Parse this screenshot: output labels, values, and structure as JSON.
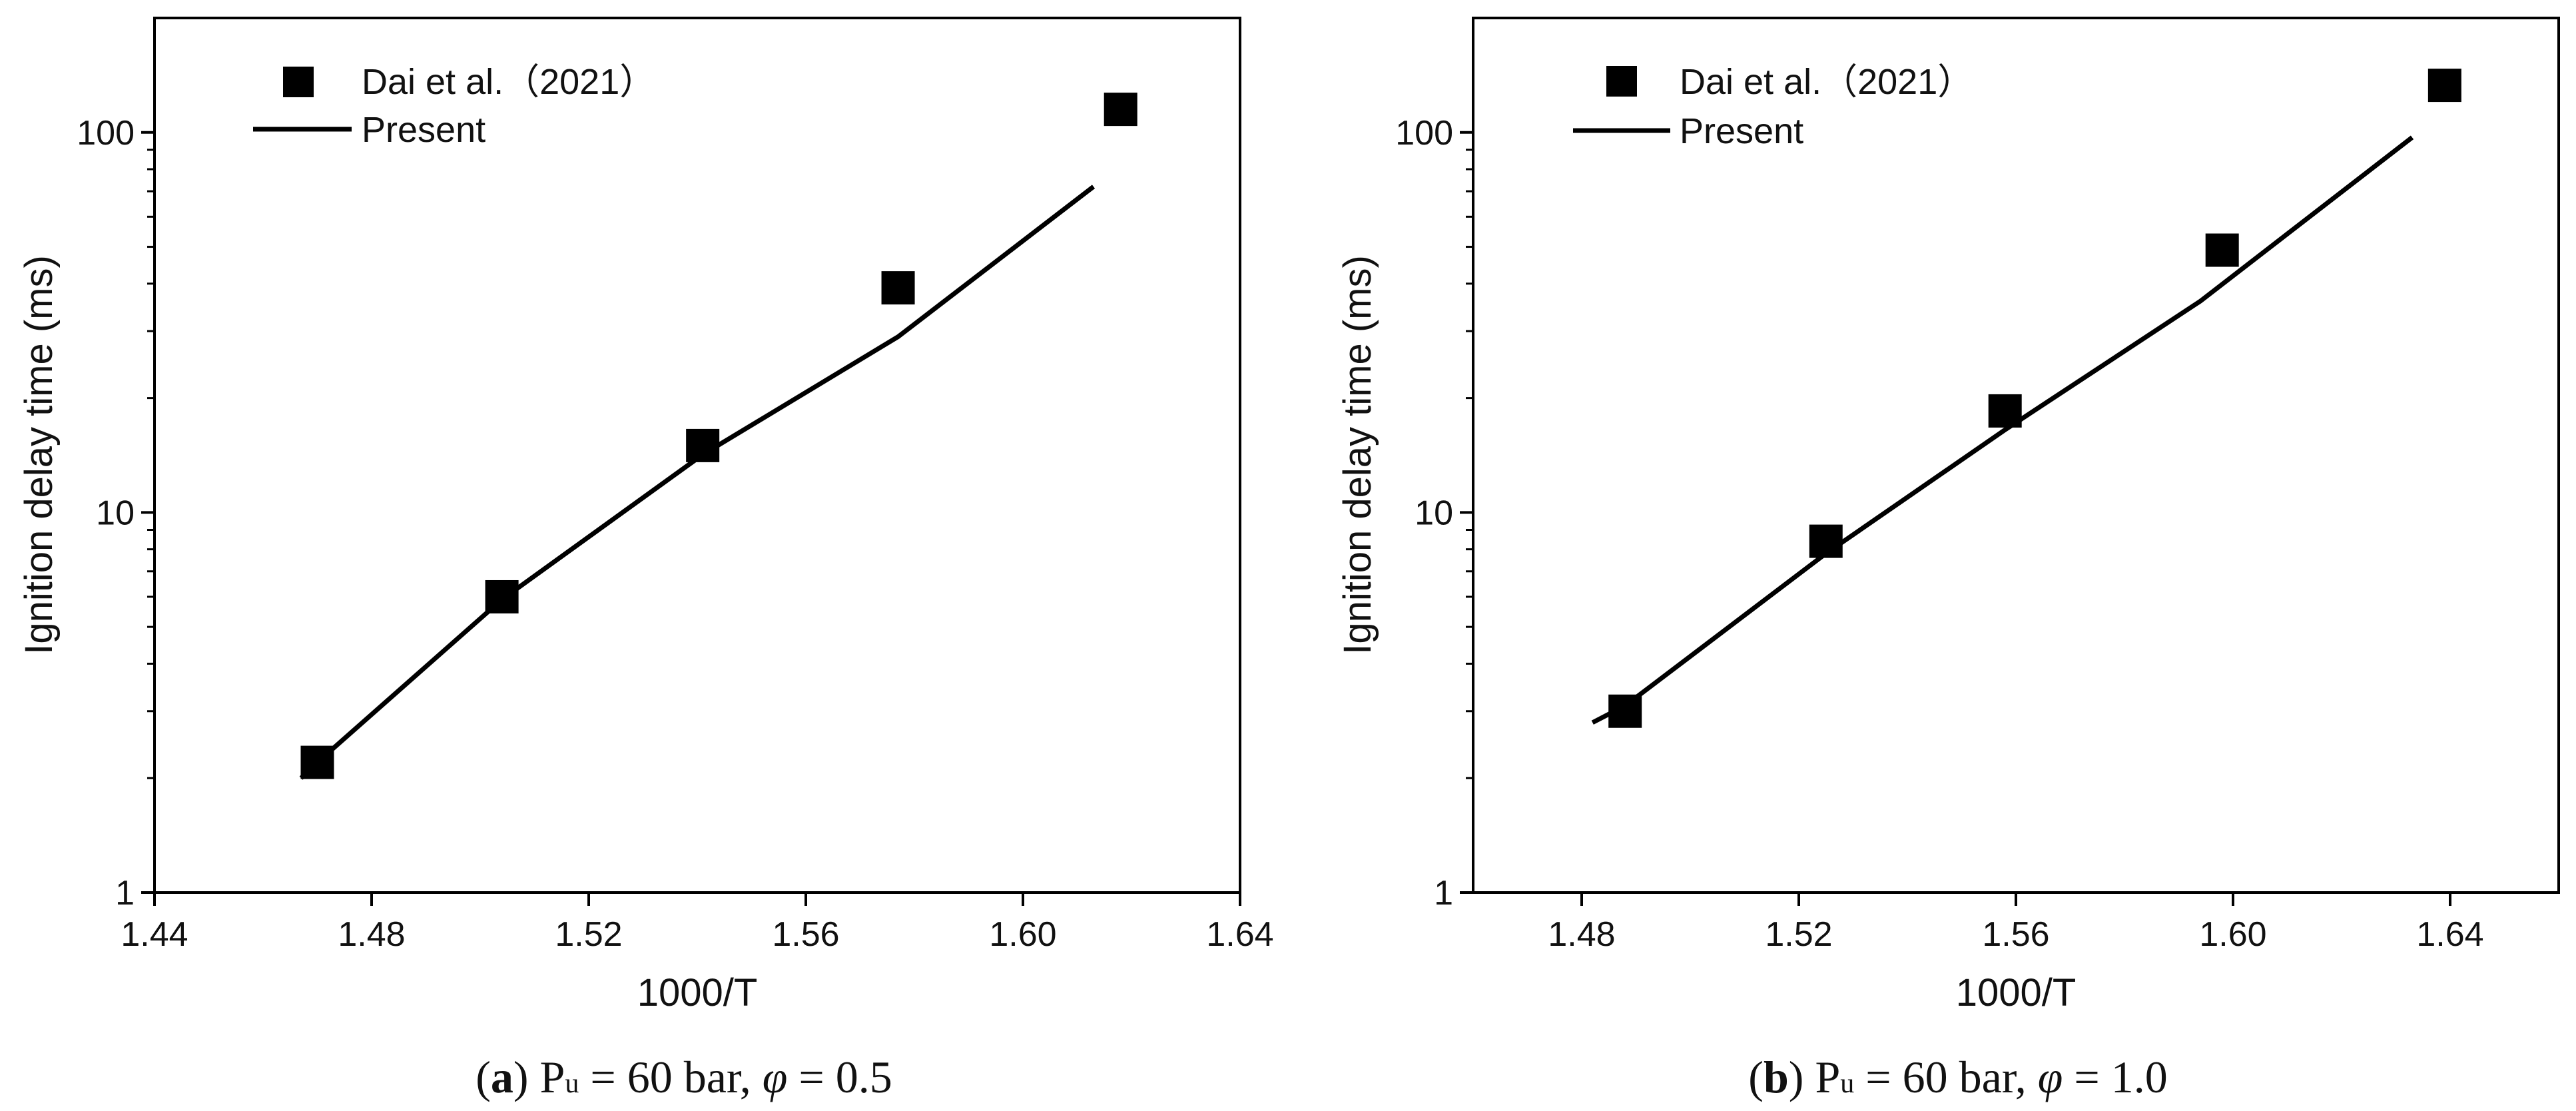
{
  "chart_data": [
    {
      "type": "scatter",
      "panel": "a",
      "caption": {
        "letter": "a",
        "text_before": " P",
        "subscript": "u",
        "text_mid": " = 60 bar,  ",
        "symbol": "φ",
        "text_after": "  = 0.5"
      },
      "xlabel": "1000/T",
      "ylabel": "Ignition delay time (ms)",
      "xlim": [
        1.44,
        1.64
      ],
      "ylim": [
        1,
        200
      ],
      "yscale": "log",
      "xticks": [
        "1.44",
        "1.48",
        "1.52",
        "1.56",
        "1.60",
        "1.64"
      ],
      "yticks": [
        "1",
        "10",
        "100"
      ],
      "legend_position": "top-left",
      "series": [
        {
          "name": "Dai et al.（2021）",
          "marker": "square",
          "color": "#000000",
          "x": [
            1.47,
            1.504,
            1.541,
            1.577,
            1.618
          ],
          "y": [
            2.2,
            6.0,
            15.0,
            39.0,
            115.0
          ]
        },
        {
          "name": "Present",
          "marker": "line",
          "color": "#000000",
          "x": [
            1.467,
            1.47,
            1.504,
            1.541,
            1.577,
            1.613
          ],
          "y": [
            2.0,
            2.2,
            5.9,
            14.2,
            29.0,
            72.0
          ]
        }
      ]
    },
    {
      "type": "scatter",
      "panel": "b",
      "caption": {
        "letter": "b",
        "text_before": " P",
        "subscript": "u",
        "text_mid": " = 60 bar,  ",
        "symbol": "φ",
        "text_after": "  = 1.0"
      },
      "xlabel": "1000/T",
      "ylabel": "Ignition delay time (ms)",
      "xlim": [
        1.46,
        1.66
      ],
      "ylim": [
        1,
        200
      ],
      "yscale": "log",
      "xticks": [
        "1.48",
        "1.52",
        "1.56",
        "1.60",
        "1.64"
      ],
      "yticks": [
        "1",
        "10",
        "100"
      ],
      "legend_position": "top-left",
      "series": [
        {
          "name": "Dai et al.（2021）",
          "marker": "square",
          "color": "#000000",
          "x": [
            1.488,
            1.525,
            1.558,
            1.598,
            1.639
          ],
          "y": [
            3.0,
            8.4,
            18.5,
            49.0,
            133.0
          ]
        },
        {
          "name": "Present",
          "marker": "line",
          "color": "#000000",
          "x": [
            1.482,
            1.488,
            1.525,
            1.558,
            1.594,
            1.633
          ],
          "y": [
            2.8,
            3.1,
            7.8,
            16.5,
            36.0,
            97.0
          ]
        }
      ]
    }
  ]
}
